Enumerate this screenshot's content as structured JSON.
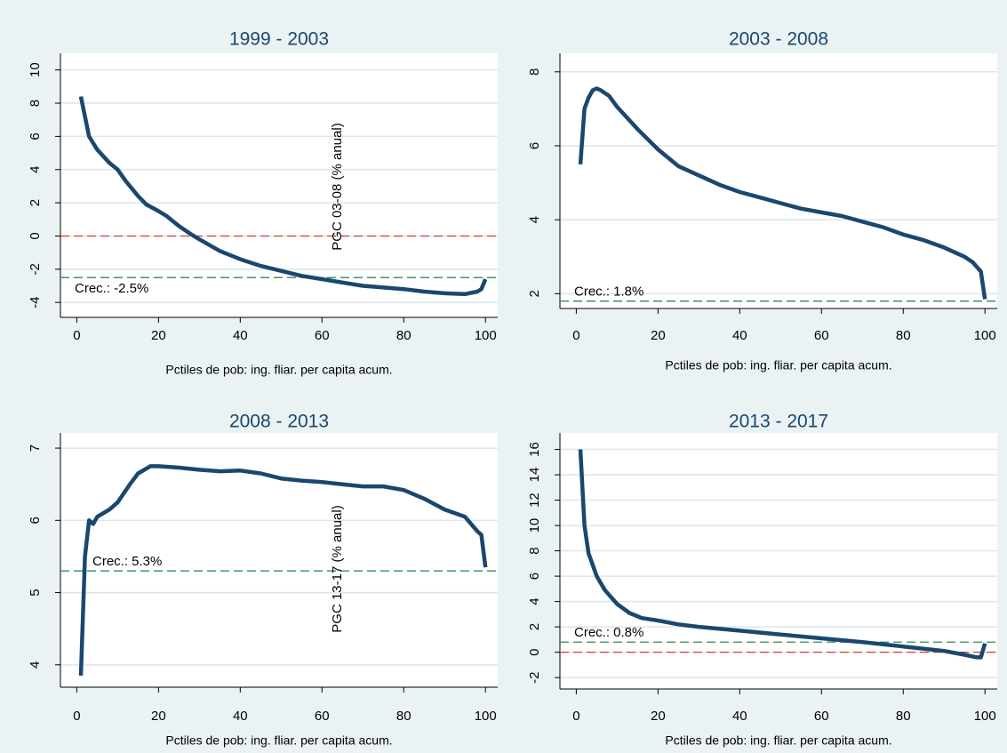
{
  "chart_data": [
    {
      "type": "line",
      "title": "1999 - 2003",
      "x_label": "Pctiles de pob: ing. fliar. per capita acum.",
      "annotation": "PGC 03-08 (% anual)",
      "x": [
        1,
        2,
        3,
        5,
        8,
        10,
        12,
        15,
        17,
        20,
        22,
        25,
        28,
        30,
        35,
        40,
        45,
        50,
        55,
        60,
        65,
        70,
        75,
        80,
        85,
        90,
        95,
        98,
        99,
        100
      ],
      "values": [
        8.4,
        7.2,
        6.0,
        5.2,
        4.4,
        4.0,
        3.3,
        2.4,
        1.9,
        1.5,
        1.2,
        0.6,
        0.1,
        -0.2,
        -0.9,
        -1.4,
        -1.8,
        -2.1,
        -2.4,
        -2.6,
        -2.8,
        -3.0,
        -3.1,
        -3.2,
        -3.35,
        -3.45,
        -3.5,
        -3.35,
        -3.2,
        -2.6
      ],
      "color": "#1a476f",
      "reference_lines": [
        {
          "value": 0,
          "color": "#e03c31"
        },
        {
          "value": -2.5,
          "color": "#2e8b57",
          "label": "Crec.: -2.5%"
        }
      ],
      "xlim": [
        -4,
        103
      ],
      "xticks": [
        0,
        20,
        40,
        60,
        80,
        100
      ],
      "ylim": [
        -4.9,
        11
      ],
      "yticks": [
        -4,
        -2,
        0,
        2,
        4,
        6,
        8,
        10
      ],
      "grid": true
    },
    {
      "type": "line",
      "title": "2003 - 2008",
      "x_label": "Pctiles de pob: ing. fliar. per capita acum.",
      "x": [
        1,
        2,
        3,
        4,
        5,
        6,
        8,
        10,
        15,
        20,
        25,
        30,
        35,
        40,
        45,
        50,
        55,
        60,
        65,
        70,
        75,
        80,
        85,
        90,
        95,
        97,
        99,
        100
      ],
      "values": [
        5.5,
        7.0,
        7.3,
        7.5,
        7.55,
        7.5,
        7.35,
        7.05,
        6.45,
        5.9,
        5.45,
        5.2,
        4.95,
        4.75,
        4.6,
        4.45,
        4.3,
        4.2,
        4.1,
        3.95,
        3.8,
        3.6,
        3.45,
        3.25,
        3.0,
        2.85,
        2.6,
        1.85
      ],
      "color": "#1a476f",
      "reference_lines": [
        {
          "value": 1.8,
          "color": "#2e8b57",
          "label": "Crec.: 1.8%"
        }
      ],
      "xlim": [
        -4,
        103
      ],
      "xticks": [
        0,
        20,
        40,
        60,
        80,
        100
      ],
      "ylim": [
        1.6,
        8.5
      ],
      "yticks": [
        2,
        4,
        6,
        8
      ],
      "grid": true
    },
    {
      "type": "line",
      "title": "2008 - 2013",
      "x_label": "Pctiles de pob: ing. fliar. per capita acum.",
      "annotation": "PGC 13-17 (% anual)",
      "x": [
        1,
        2,
        3,
        4,
        5,
        8,
        10,
        13,
        15,
        18,
        20,
        25,
        30,
        35,
        40,
        45,
        50,
        55,
        60,
        65,
        70,
        75,
        80,
        85,
        90,
        95,
        98,
        99,
        100
      ],
      "values": [
        3.85,
        5.5,
        6.0,
        5.95,
        6.05,
        6.15,
        6.25,
        6.5,
        6.65,
        6.75,
        6.75,
        6.73,
        6.7,
        6.68,
        6.69,
        6.65,
        6.58,
        6.55,
        6.53,
        6.5,
        6.47,
        6.47,
        6.42,
        6.3,
        6.15,
        6.05,
        5.85,
        5.8,
        5.35
      ],
      "color": "#1a476f",
      "reference_lines": [
        {
          "value": 5.3,
          "color": "#2e8b57",
          "label": "Crec.: 5.3%"
        }
      ],
      "xlim": [
        -4,
        103
      ],
      "xticks": [
        0,
        20,
        40,
        60,
        80,
        100
      ],
      "ylim": [
        3.69,
        7.21
      ],
      "yticks": [
        4,
        5,
        6,
        7
      ],
      "grid": true
    },
    {
      "type": "line",
      "title": "2013 - 2017",
      "x_label": "Pctiles de pob: ing. fliar. per capita acum.",
      "x": [
        1,
        2,
        3,
        5,
        7,
        10,
        13,
        16,
        20,
        25,
        30,
        40,
        50,
        60,
        70,
        80,
        90,
        95,
        98,
        99,
        100
      ],
      "values": [
        16,
        10,
        7.8,
        6,
        4.9,
        3.8,
        3.1,
        2.7,
        2.5,
        2.2,
        2.0,
        1.7,
        1.4,
        1.1,
        0.8,
        0.45,
        0.1,
        -0.2,
        -0.4,
        -0.4,
        0.7
      ],
      "color": "#1a476f",
      "reference_lines": [
        {
          "value": 0,
          "color": "#e03c31"
        },
        {
          "value": 0.8,
          "color": "#2e8b57",
          "label": "Crec.: 0.8%"
        }
      ],
      "xlim": [
        -4,
        103
      ],
      "xticks": [
        0,
        20,
        40,
        60,
        80,
        100
      ],
      "ylim": [
        -2.9,
        17.3
      ],
      "yticks": [
        -2,
        0,
        2,
        4,
        6,
        8,
        10,
        12,
        14,
        16
      ],
      "grid": true
    }
  ]
}
